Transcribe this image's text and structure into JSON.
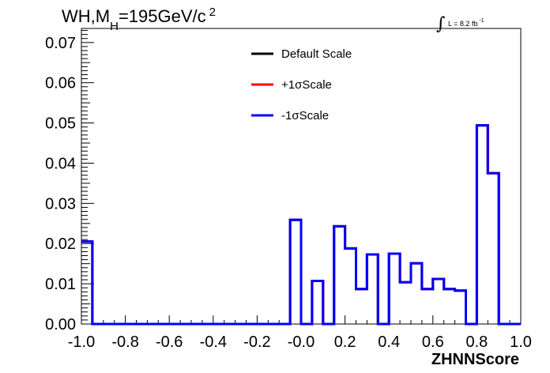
{
  "chart_data": {
    "type": "line",
    "title_parts": {
      "main": "WH,M",
      "sub": "H",
      "rest": "=195GeV/c",
      "sup": "2"
    },
    "xlabel": "ZHNNScore",
    "ylabel": "",
    "xlim": [
      -1.0,
      1.0
    ],
    "ylim": [
      0.0,
      0.0735
    ],
    "x_ticks": [
      "-1.0",
      "-0.8",
      "-0.6",
      "-0.4",
      "-0.2",
      "-0.0",
      "0.2",
      "0.4",
      "0.6",
      "0.8",
      "1.0"
    ],
    "y_ticks": [
      "0.00",
      "0.01",
      "0.02",
      "0.03",
      "0.04",
      "0.05",
      "0.06",
      "0.07"
    ],
    "luminosity": {
      "symbol": "∫",
      "text": "L = 8.2 fb",
      "sup": "-1"
    },
    "legend": {
      "position": "top-center"
    },
    "bin_edges": [
      -1.0,
      -0.95,
      -0.9,
      -0.85,
      -0.8,
      -0.75,
      -0.7,
      -0.65,
      -0.6,
      -0.55,
      -0.5,
      -0.45,
      -0.4,
      -0.35,
      -0.3,
      -0.25,
      -0.2,
      -0.15,
      -0.1,
      -0.05,
      0.0,
      0.05,
      0.1,
      0.15,
      0.2,
      0.25,
      0.3,
      0.35,
      0.4,
      0.45,
      0.5,
      0.55,
      0.6,
      0.65,
      0.7,
      0.75,
      0.8,
      0.85,
      0.9,
      0.95,
      1.0
    ],
    "series": [
      {
        "name": "Default Scale",
        "color": "#000000",
        "values": [
          0.0205,
          0,
          0,
          0,
          0,
          0,
          0,
          0,
          0,
          0,
          0,
          0,
          0,
          0,
          0,
          0,
          0,
          0,
          0,
          0.0259,
          0,
          0.0107,
          0,
          0.0243,
          0.0188,
          0.0087,
          0.0173,
          0,
          0.0175,
          0.0104,
          0.0151,
          0.0087,
          0.0112,
          0.0087,
          0.0083,
          0,
          0.0494,
          0.0375,
          0,
          0
        ]
      },
      {
        "name": "+1σScale",
        "color": "#ff0000",
        "values": [
          0.0205,
          0,
          0,
          0,
          0,
          0,
          0,
          0,
          0,
          0,
          0,
          0,
          0,
          0,
          0,
          0,
          0,
          0,
          0,
          0.0259,
          0,
          0.0107,
          0,
          0.0243,
          0.0188,
          0.0087,
          0.0173,
          0,
          0.0175,
          0.0104,
          0.0151,
          0.0087,
          0.0112,
          0.0087,
          0.0083,
          0,
          0.0494,
          0.0375,
          0,
          0
        ]
      },
      {
        "name": "-1σScale",
        "color": "#0000ff",
        "values": [
          0.0205,
          0,
          0,
          0,
          0,
          0,
          0,
          0,
          0,
          0,
          0,
          0,
          0,
          0,
          0,
          0,
          0,
          0,
          0,
          0.0259,
          0,
          0.0107,
          0,
          0.0243,
          0.0188,
          0.0087,
          0.0173,
          0,
          0.0175,
          0.0104,
          0.0151,
          0.0087,
          0.0112,
          0.0087,
          0.0083,
          0,
          0.0494,
          0.0375,
          0,
          0
        ]
      }
    ]
  }
}
